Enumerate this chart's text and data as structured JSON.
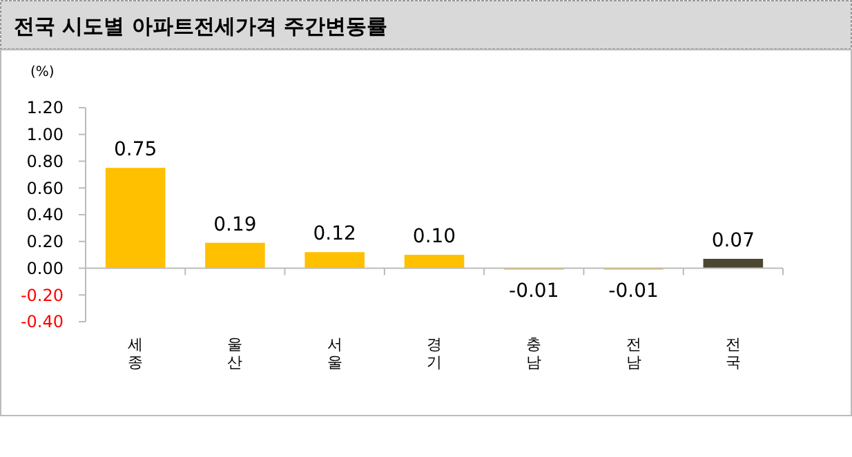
{
  "chart_data": {
    "type": "bar",
    "title": "전국 시도별 아파트전세가격 주간변동률",
    "ylabel": "(%)",
    "categories": [
      "세종",
      "울산",
      "서울",
      "경기",
      "충남",
      "전남",
      "전국"
    ],
    "values": [
      0.75,
      0.19,
      0.12,
      0.1,
      -0.01,
      -0.01,
      0.07
    ],
    "colors": [
      "#ffc000",
      "#ffc000",
      "#ffc000",
      "#ffc000",
      "#ffc000",
      "#ffc000",
      "#4a4630"
    ],
    "ylim": [
      -0.4,
      1.2
    ],
    "yticks": [
      {
        "value": -0.4,
        "label": "-0.40"
      },
      {
        "value": -0.2,
        "label": "-0.20"
      },
      {
        "value": 0,
        "label": "0.00"
      },
      {
        "value": 0.2,
        "label": "0.20"
      },
      {
        "value": 0.4,
        "label": "0.40"
      },
      {
        "value": 0.6,
        "label": "0.60"
      },
      {
        "value": 0.8,
        "label": "0.80"
      },
      {
        "value": 1.0,
        "label": "1.00"
      },
      {
        "value": 1.2,
        "label": "1.20"
      }
    ],
    "value_labels": [
      "0.75",
      "0.19",
      "0.12",
      "0.10",
      "-0.01",
      "-0.01",
      "0.07"
    ]
  }
}
